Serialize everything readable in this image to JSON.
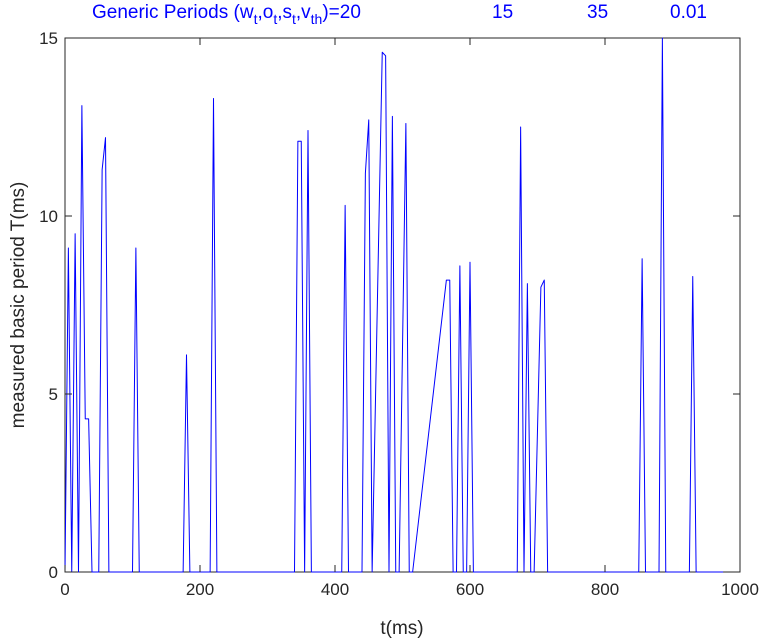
{
  "chart_data": {
    "type": "line",
    "title": {
      "prefix": "Generic Periods (w",
      "sub1": "t",
      "sep1": ",o",
      "sub2": "t",
      "sep2": ",s",
      "sub3": "t",
      "sep3": ",v",
      "sub4": "th",
      "suffix": ")=20",
      "v2": "15",
      "v3": "35",
      "v4": "0.01"
    },
    "xlabel": "t(ms)",
    "ylabel": "measured basic period T(ms)",
    "xlim": [
      0,
      1000
    ],
    "ylim": [
      0,
      15
    ],
    "xticks": [
      0,
      200,
      400,
      600,
      800,
      1000
    ],
    "yticks": [
      0,
      5,
      10,
      15
    ],
    "grid": false,
    "series": [
      {
        "color": "#0000ff",
        "x": [
          0,
          5,
          10,
          15,
          20,
          25,
          30,
          35,
          40,
          45,
          50,
          55,
          60,
          65,
          70,
          75,
          100,
          105,
          110,
          175,
          180,
          185,
          215,
          220,
          225,
          340,
          345,
          350,
          355,
          360,
          365,
          370,
          375,
          410,
          415,
          420,
          440,
          445,
          450,
          455,
          470,
          475,
          480,
          485,
          490,
          495,
          505,
          510,
          515,
          565,
          570,
          575,
          580,
          585,
          590,
          595,
          600,
          605,
          610,
          670,
          675,
          680,
          685,
          690,
          695,
          705,
          710,
          715,
          720,
          850,
          855,
          860,
          880,
          885,
          890,
          925,
          930,
          935,
          975
        ],
        "y": [
          0,
          9.1,
          0,
          9.5,
          0,
          13.1,
          4.3,
          4.3,
          0,
          0,
          0,
          11.3,
          12.2,
          0,
          0,
          0,
          0,
          9.1,
          0,
          0,
          6.1,
          0,
          0,
          13.3,
          0,
          0,
          12.1,
          12.1,
          0,
          12.4,
          0,
          0,
          0,
          0,
          10.3,
          0,
          0,
          11.2,
          12.7,
          0,
          14.6,
          14.5,
          0,
          12.8,
          0,
          0,
          12.6,
          0,
          0,
          8.2,
          8.2,
          0,
          0,
          8.6,
          0,
          0,
          8.7,
          0,
          0,
          0,
          12.5,
          0,
          8.1,
          0,
          0,
          8.0,
          8.2,
          0,
          0,
          0,
          8.8,
          0,
          0,
          15.0,
          0,
          0,
          8.3,
          0,
          0
        ]
      }
    ]
  }
}
